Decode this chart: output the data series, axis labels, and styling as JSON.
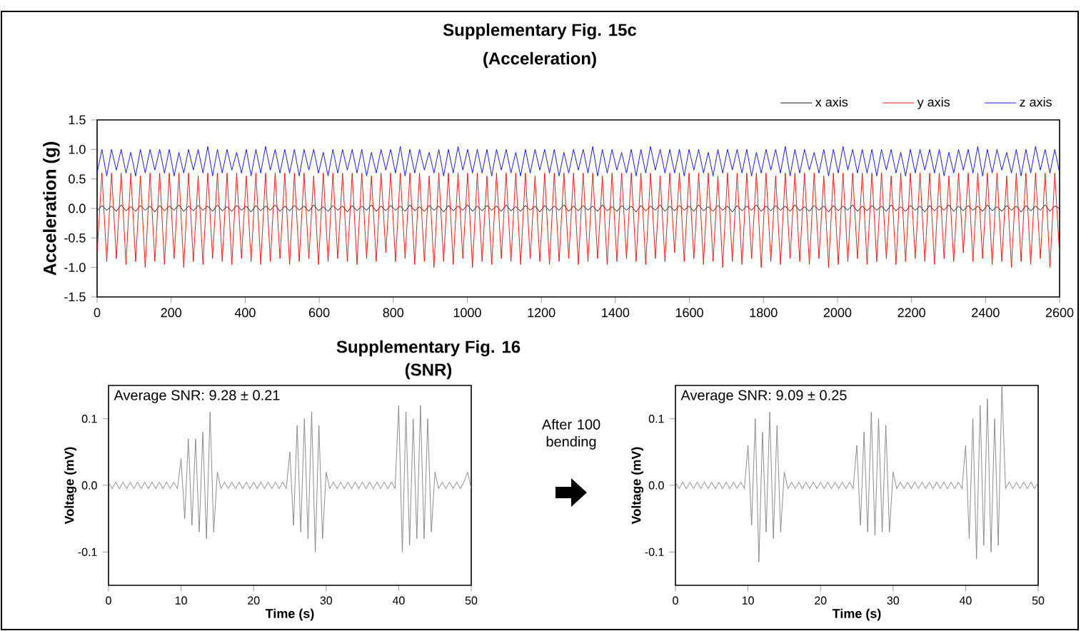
{
  "chart_data": [
    {
      "type": "line",
      "title": "Supplementary Fig. 15c",
      "subtitle": "(Acceleration)",
      "ylabel": "Acceleration (g)",
      "legend": "top right",
      "xlim": [
        0,
        2600
      ],
      "ylim": [
        -1.5,
        1.5
      ],
      "xticks": [
        0,
        200,
        400,
        600,
        800,
        1000,
        1200,
        1400,
        1600,
        1800,
        2000,
        2200,
        2400,
        2600
      ],
      "yticks": [
        {
          "value": -1.5,
          "label": "-1.5"
        },
        {
          "value": -1.0,
          "label": "-1.0"
        },
        {
          "value": -0.5,
          "label": "-0.5"
        },
        {
          "value": 0.0,
          "label": "0.0"
        },
        {
          "value": 0.5,
          "label": "0.5"
        },
        {
          "value": 1.0,
          "label": "1.0"
        },
        {
          "value": 1.5,
          "label": "1.5"
        }
      ],
      "x": [
        0,
        13,
        26,
        39,
        52,
        65,
        78,
        91,
        104,
        117,
        130,
        143,
        156,
        169,
        182,
        195,
        208,
        221,
        234,
        247,
        260,
        273,
        286,
        299,
        312,
        325,
        338,
        351,
        364,
        377,
        390,
        403,
        416,
        429,
        442,
        455,
        468,
        481,
        494,
        507,
        520,
        533,
        546,
        559,
        572,
        585,
        598,
        611,
        624,
        637,
        650,
        663,
        676,
        689,
        702,
        715,
        728,
        741,
        754,
        767,
        780,
        793,
        806,
        819,
        832,
        845,
        858,
        871,
        884,
        897,
        910,
        923,
        936,
        949,
        962,
        975,
        988,
        1001,
        1014,
        1027,
        1040,
        1053,
        1066,
        1079,
        1092,
        1105,
        1118,
        1131,
        1144,
        1157,
        1170,
        1183,
        1196,
        1209,
        1222,
        1235,
        1248,
        1261,
        1274,
        1287,
        1300,
        1313,
        1326,
        1339,
        1352,
        1365,
        1378,
        1391,
        1404,
        1417,
        1430,
        1443,
        1456,
        1469,
        1482,
        1495,
        1508,
        1521,
        1534,
        1547,
        1560,
        1573,
        1586,
        1599,
        1612,
        1625,
        1638,
        1651,
        1664,
        1677,
        1690,
        1703,
        1716,
        1729,
        1742,
        1755,
        1768,
        1781,
        1794,
        1807,
        1820,
        1833,
        1846,
        1859,
        1872,
        1885,
        1898,
        1911,
        1924,
        1937,
        1950,
        1963,
        1976,
        1989,
        2002,
        2015,
        2028,
        2041,
        2054,
        2067,
        2080,
        2093,
        2106,
        2119,
        2132,
        2145,
        2158,
        2171,
        2184,
        2197,
        2210,
        2223,
        2236,
        2249,
        2262,
        2275,
        2288,
        2301,
        2314,
        2327,
        2340,
        2353,
        2366,
        2379,
        2392,
        2405,
        2418,
        2431,
        2444,
        2457,
        2470,
        2483,
        2496,
        2509,
        2522,
        2535,
        2548,
        2561,
        2574,
        2587,
        2600
      ],
      "series": [
        {
          "name": "x axis",
          "color": "#000000",
          "values": [
            -0.04,
            0.05,
            -0.03,
            0.04,
            -0.05,
            0.06,
            -0.04,
            0.03,
            -0.05,
            0.05,
            -0.03,
            0.04,
            -0.06,
            0.05,
            -0.04,
            0.04,
            -0.03,
            0.06,
            -0.05,
            0.04,
            -0.04,
            0.05,
            -0.03,
            0.04,
            -0.05,
            0.06,
            -0.04,
            0.03,
            -0.05,
            0.05,
            -0.03,
            0.04,
            -0.06,
            0.05,
            -0.04,
            0.04,
            -0.03,
            0.06,
            -0.05,
            0.04,
            -0.04,
            0.05,
            -0.03,
            0.04,
            -0.05,
            0.06,
            -0.04,
            0.03,
            -0.05,
            0.05,
            -0.03,
            0.04,
            -0.06,
            0.05,
            -0.04,
            0.04,
            -0.03,
            0.06,
            -0.05,
            0.04,
            -0.04,
            0.05,
            -0.03,
            0.04,
            -0.05,
            0.06,
            -0.04,
            0.03,
            -0.05,
            0.05,
            -0.03,
            0.04,
            -0.06,
            0.05,
            -0.04,
            0.04,
            -0.03,
            0.06,
            -0.05,
            0.04,
            -0.04,
            0.05,
            -0.03,
            0.04,
            -0.05,
            0.06,
            -0.04,
            0.03,
            -0.05,
            0.05,
            -0.03,
            0.04,
            -0.06,
            0.05,
            -0.04,
            0.04,
            -0.03,
            0.06,
            -0.05,
            0.04,
            -0.04,
            0.05,
            -0.03,
            0.04,
            -0.05,
            0.06,
            -0.04,
            0.03,
            -0.05,
            0.05,
            -0.03,
            0.04,
            -0.06,
            0.05,
            -0.04,
            0.04,
            -0.03,
            0.06,
            -0.05,
            0.04,
            -0.04,
            0.05,
            -0.03,
            0.04,
            -0.05,
            0.06,
            -0.04,
            0.03,
            -0.05,
            0.05,
            -0.03,
            0.04,
            -0.06,
            0.05,
            -0.04,
            0.04,
            -0.03,
            0.06,
            -0.05,
            0.04,
            -0.04,
            0.05,
            -0.03,
            0.04,
            -0.05,
            0.06,
            -0.04,
            0.03,
            -0.05,
            0.05,
            -0.03,
            0.04,
            -0.06,
            0.05,
            -0.04,
            0.04,
            -0.03,
            0.06,
            -0.05,
            0.04,
            -0.04,
            0.05,
            -0.03,
            0.04,
            -0.05,
            0.06,
            -0.04,
            0.03,
            -0.05,
            0.05,
            -0.03,
            0.04,
            -0.06,
            0.05,
            -0.04,
            0.04,
            -0.03,
            0.06,
            -0.05,
            0.04,
            -0.04,
            0.05,
            -0.03,
            0.04,
            -0.05,
            0.06,
            -0.04,
            0.03,
            -0.05,
            0.05,
            -0.03,
            0.04,
            -0.06,
            0.05,
            -0.04,
            0.04,
            -0.03,
            0.06,
            -0.05,
            0.04,
            0.0
          ]
        },
        {
          "name": "y axis",
          "color": "#ff0000",
          "values": [
            -0.75,
            0.6,
            -0.9,
            0.6,
            -0.85,
            0.6,
            -0.95,
            0.6,
            -0.9,
            0.55,
            -1.0,
            0.6,
            -0.9,
            0.6,
            -0.95,
            0.6,
            -0.85,
            0.6,
            -1.0,
            0.6,
            -0.9,
            0.55,
            -0.95,
            0.6,
            -0.85,
            0.6,
            -0.9,
            0.6,
            -0.95,
            0.6,
            -0.85,
            0.55,
            -0.9,
            0.6,
            -0.95,
            0.6,
            -0.9,
            0.6,
            -0.85,
            0.6,
            -0.95,
            0.6,
            -0.9,
            0.6,
            -0.85,
            0.55,
            -0.95,
            0.6,
            -0.9,
            0.6,
            -0.85,
            0.6,
            -0.9,
            0.6,
            -0.95,
            0.6,
            -0.85,
            0.55,
            -0.9,
            0.6,
            -0.75,
            0.6,
            -0.9,
            0.6,
            -0.85,
            0.6,
            -0.95,
            0.6,
            -0.9,
            0.55,
            -1.0,
            0.6,
            -0.9,
            0.6,
            -0.95,
            0.6,
            -0.85,
            0.6,
            -1.0,
            0.6,
            -0.9,
            0.55,
            -0.95,
            0.6,
            -0.85,
            0.6,
            -0.9,
            0.6,
            -0.95,
            0.6,
            -0.85,
            0.55,
            -0.9,
            0.6,
            -0.95,
            0.6,
            -0.9,
            0.6,
            -0.85,
            0.6,
            -0.95,
            0.6,
            -0.9,
            0.6,
            -0.85,
            0.55,
            -0.95,
            0.6,
            -0.9,
            0.6,
            -0.85,
            0.6,
            -0.9,
            0.6,
            -0.95,
            0.6,
            -0.85,
            0.55,
            -0.9,
            0.6,
            -0.75,
            0.6,
            -0.9,
            0.6,
            -0.85,
            0.6,
            -0.95,
            0.6,
            -0.9,
            0.55,
            -1.0,
            0.6,
            -0.9,
            0.6,
            -0.95,
            0.6,
            -0.85,
            0.6,
            -1.0,
            0.6,
            -0.9,
            0.55,
            -0.95,
            0.6,
            -0.85,
            0.6,
            -0.9,
            0.6,
            -0.95,
            0.6,
            -0.85,
            0.55,
            -1.0,
            0.6,
            -0.95,
            0.6,
            -0.9,
            0.6,
            -0.85,
            0.6,
            -0.95,
            0.6,
            -0.9,
            0.6,
            -0.85,
            0.55,
            -0.95,
            0.6,
            -0.9,
            0.6,
            -0.85,
            0.6,
            -0.9,
            0.6,
            -0.95,
            0.6,
            -0.85,
            0.55,
            -0.9,
            0.6,
            -0.75,
            0.6,
            -0.9,
            0.6,
            -0.85,
            0.6,
            -0.95,
            0.6,
            -0.9,
            0.55,
            -1.0,
            0.6,
            -0.9,
            0.6,
            -0.95,
            0.6,
            -0.85,
            0.6,
            -1.0,
            0.6,
            -0.8
          ]
        },
        {
          "name": "z axis",
          "color": "#0000ff",
          "values": [
            0.6,
            1.0,
            0.55,
            1.0,
            0.65,
            1.0,
            0.6,
            0.95,
            0.55,
            1.0,
            0.6,
            1.0,
            0.65,
            1.0,
            0.6,
            1.0,
            0.55,
            0.95,
            0.6,
            1.0,
            0.65,
            1.0,
            0.6,
            1.05,
            0.55,
            1.0,
            0.6,
            1.0,
            0.65,
            0.95,
            0.6,
            1.0,
            0.55,
            1.0,
            0.6,
            1.05,
            0.65,
            1.0,
            0.6,
            1.0,
            0.6,
            1.0,
            0.55,
            1.0,
            0.65,
            1.0,
            0.6,
            0.95,
            0.55,
            1.0,
            0.6,
            1.0,
            0.65,
            1.0,
            0.6,
            1.0,
            0.55,
            0.95,
            0.6,
            1.0,
            0.65,
            1.0,
            0.6,
            1.05,
            0.55,
            1.0,
            0.6,
            1.0,
            0.65,
            0.95,
            0.6,
            1.0,
            0.55,
            1.0,
            0.6,
            1.05,
            0.65,
            1.0,
            0.6,
            1.0,
            0.6,
            1.0,
            0.55,
            1.0,
            0.65,
            1.0,
            0.6,
            0.95,
            0.55,
            1.0,
            0.6,
            1.0,
            0.65,
            1.0,
            0.6,
            1.0,
            0.55,
            0.95,
            0.6,
            1.0,
            0.65,
            1.0,
            0.6,
            1.05,
            0.55,
            1.0,
            0.6,
            1.0,
            0.65,
            0.95,
            0.6,
            1.0,
            0.55,
            1.0,
            0.6,
            1.05,
            0.65,
            1.0,
            0.6,
            1.0,
            0.6,
            1.0,
            0.55,
            1.0,
            0.65,
            1.0,
            0.6,
            0.95,
            0.55,
            1.0,
            0.6,
            1.0,
            0.65,
            1.0,
            0.6,
            1.0,
            0.55,
            0.95,
            0.6,
            1.0,
            0.65,
            1.0,
            0.6,
            1.05,
            0.55,
            1.0,
            0.6,
            1.0,
            0.65,
            0.95,
            0.6,
            1.0,
            0.55,
            1.0,
            0.6,
            1.05,
            0.65,
            1.0,
            0.6,
            1.0,
            0.6,
            1.0,
            0.55,
            1.0,
            0.65,
            1.0,
            0.6,
            0.95,
            0.55,
            1.0,
            0.6,
            1.0,
            0.65,
            1.0,
            0.6,
            1.0,
            0.55,
            0.95,
            0.6,
            1.0,
            0.65,
            1.0,
            0.6,
            1.05,
            0.55,
            1.0,
            0.6,
            1.0,
            0.65,
            0.95,
            0.6,
            1.0,
            0.55,
            1.0,
            0.6,
            1.05,
            0.65,
            1.0,
            0.6,
            1.0,
            0.6
          ]
        }
      ]
    },
    {
      "type": "line",
      "title": "Supplementary Fig. 16",
      "subtitle": "(SNR)",
      "xlabel": "Time (s)",
      "ylabel": "Voltage (mV)",
      "annotations": [
        "Average SNR: 9.28 ± 0.21",
        "After 100 bending"
      ],
      "xlim": [
        0,
        50
      ],
      "ylim": [
        -0.15,
        0.15
      ],
      "xticks": [
        0,
        10,
        20,
        30,
        40,
        50
      ],
      "yticks": [
        {
          "value": -0.1,
          "label": "-0.1"
        },
        {
          "value": 0.0,
          "label": "0.0"
        },
        {
          "value": 0.1,
          "label": "0.1"
        }
      ],
      "x": [
        0,
        0.5,
        1,
        1.5,
        2,
        2.5,
        3,
        3.5,
        4,
        4.5,
        5,
        5.5,
        6,
        6.5,
        7,
        7.5,
        8,
        8.5,
        9,
        9.5,
        10,
        10.5,
        11,
        11.5,
        12,
        12.5,
        13,
        13.5,
        14,
        14.5,
        15,
        15.5,
        16,
        16.5,
        17,
        17.5,
        18,
        18.5,
        19,
        19.5,
        20,
        20.5,
        21,
        21.5,
        22,
        22.5,
        23,
        23.5,
        24,
        24.5,
        25,
        25.5,
        26,
        26.5,
        27,
        27.5,
        28,
        28.5,
        29,
        29.5,
        30,
        30.5,
        31,
        31.5,
        32,
        32.5,
        33,
        33.5,
        34,
        34.5,
        35,
        35.5,
        36,
        36.5,
        37,
        37.5,
        38,
        38.5,
        39,
        39.5,
        40,
        40.5,
        41,
        41.5,
        42,
        42.5,
        43,
        43.5,
        44,
        44.5,
        45,
        45.5,
        46,
        46.5,
        47,
        47.5,
        48,
        48.5,
        49,
        49.5,
        50
      ],
      "color": "#808080",
      "values": [
        0.005,
        -0.005,
        0.005,
        -0.005,
        0.005,
        -0.005,
        0.005,
        -0.005,
        0.005,
        -0.005,
        0.005,
        -0.005,
        0.005,
        -0.005,
        0.005,
        -0.005,
        0.005,
        -0.005,
        0.005,
        -0.005,
        0.04,
        -0.05,
        0.07,
        -0.06,
        0.07,
        -0.07,
        0.08,
        -0.08,
        0.11,
        -0.07,
        0.02,
        -0.005,
        0.005,
        -0.005,
        0.005,
        -0.005,
        0.005,
        -0.005,
        0.005,
        -0.005,
        0.005,
        -0.005,
        0.005,
        -0.005,
        0.005,
        -0.005,
        0.005,
        -0.005,
        0.005,
        -0.005,
        0.05,
        -0.06,
        0.09,
        -0.07,
        0.1,
        -0.08,
        0.11,
        -0.1,
        0.09,
        -0.08,
        0.02,
        -0.005,
        0.005,
        -0.005,
        0.005,
        -0.005,
        0.005,
        -0.005,
        0.005,
        -0.005,
        0.005,
        -0.005,
        0.005,
        -0.005,
        0.005,
        -0.005,
        0.005,
        -0.005,
        0.005,
        -0.005,
        0.12,
        -0.1,
        0.11,
        -0.09,
        0.1,
        -0.08,
        0.12,
        -0.08,
        0.1,
        -0.07,
        0.02,
        -0.005,
        0.005,
        -0.005,
        0.005,
        -0.005,
        0.005,
        -0.005,
        0.005,
        0.02,
        -0.005
      ]
    },
    {
      "type": "line",
      "xlabel": "Time (s)",
      "ylabel": "Voltage (mV)",
      "annotations": [
        "Average SNR: 9.09 ± 0.25"
      ],
      "xlim": [
        0,
        50
      ],
      "ylim": [
        -0.15,
        0.15
      ],
      "xticks": [
        0,
        10,
        20,
        30,
        40,
        50
      ],
      "yticks": [
        {
          "value": -0.1,
          "label": "-0.1"
        },
        {
          "value": 0.0,
          "label": "0.0"
        },
        {
          "value": 0.1,
          "label": "0.1"
        }
      ],
      "x": [
        0,
        0.5,
        1,
        1.5,
        2,
        2.5,
        3,
        3.5,
        4,
        4.5,
        5,
        5.5,
        6,
        6.5,
        7,
        7.5,
        8,
        8.5,
        9,
        9.5,
        10,
        10.5,
        11,
        11.5,
        12,
        12.5,
        13,
        13.5,
        14,
        14.5,
        15,
        15.5,
        16,
        16.5,
        17,
        17.5,
        18,
        18.5,
        19,
        19.5,
        20,
        20.5,
        21,
        21.5,
        22,
        22.5,
        23,
        23.5,
        24,
        24.5,
        25,
        25.5,
        26,
        26.5,
        27,
        27.5,
        28,
        28.5,
        29,
        29.5,
        30,
        30.5,
        31,
        31.5,
        32,
        32.5,
        33,
        33.5,
        34,
        34.5,
        35,
        35.5,
        36,
        36.5,
        37,
        37.5,
        38,
        38.5,
        39,
        39.5,
        40,
        40.5,
        41,
        41.5,
        42,
        42.5,
        43,
        43.5,
        44,
        44.5,
        45,
        45.5,
        46,
        46.5,
        47,
        47.5,
        48,
        48.5,
        49,
        49.5,
        50
      ],
      "color": "#808080",
      "values": [
        0.005,
        -0.005,
        0.005,
        -0.005,
        0.005,
        -0.005,
        0.005,
        -0.005,
        0.005,
        -0.005,
        0.005,
        -0.005,
        0.005,
        -0.005,
        0.005,
        -0.005,
        0.005,
        -0.005,
        0.005,
        -0.005,
        0.06,
        -0.06,
        0.1,
        -0.115,
        0.08,
        -0.07,
        0.11,
        -0.08,
        0.09,
        -0.07,
        0.02,
        -0.005,
        0.005,
        -0.005,
        0.005,
        -0.005,
        0.005,
        -0.005,
        0.005,
        -0.005,
        0.005,
        -0.005,
        0.005,
        -0.005,
        0.005,
        -0.005,
        0.005,
        -0.005,
        0.005,
        -0.005,
        0.06,
        -0.06,
        0.08,
        -0.07,
        0.11,
        -0.075,
        0.1,
        -0.07,
        0.09,
        -0.07,
        0.02,
        -0.005,
        0.005,
        -0.005,
        0.005,
        -0.005,
        0.005,
        -0.005,
        0.005,
        -0.005,
        0.005,
        -0.005,
        0.005,
        -0.005,
        0.005,
        -0.005,
        0.005,
        -0.005,
        0.005,
        -0.005,
        0.06,
        -0.08,
        0.1,
        -0.11,
        0.12,
        -0.09,
        0.13,
        -0.1,
        0.1,
        -0.09,
        0.15,
        -0.005,
        0.005,
        -0.005,
        0.005,
        -0.005,
        0.005,
        -0.005,
        0.005,
        -0.005,
        0.005
      ]
    }
  ]
}
